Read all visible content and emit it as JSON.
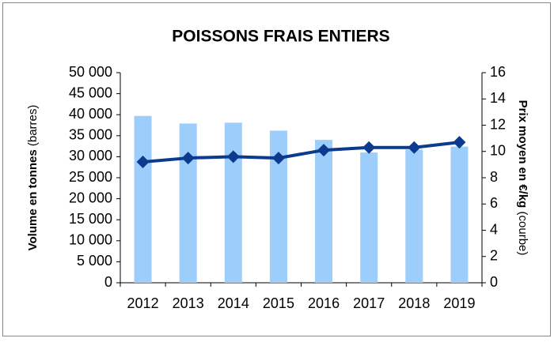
{
  "chart_data": {
    "type": "bar_line",
    "title": "POISSONS FRAIS ENTIERS",
    "y_label": "Volume en tonnes",
    "y_label_note": "(barres)",
    "y2_label": "Prix moyen en €/kg",
    "y2_label_note": "(courbe)",
    "categories": [
      "2012",
      "2013",
      "2014",
      "2015",
      "2016",
      "2017",
      "2018",
      "2019"
    ],
    "series": [
      {
        "type": "bar",
        "color": "#9dcdfa",
        "values": [
          39700,
          37900,
          38100,
          36200,
          34000,
          31000,
          31700,
          32400
        ]
      },
      {
        "type": "line",
        "axis": "y2",
        "color": "#0b3a8f",
        "values": [
          9.2,
          9.5,
          9.6,
          9.5,
          10.1,
          10.3,
          10.3,
          10.7
        ]
      }
    ],
    "ylim": [
      0,
      50000
    ],
    "yticks": [
      0,
      {
        "value": 5000,
        "label": "5 000"
      },
      {
        "value": 10000,
        "label": "10 000"
      },
      {
        "value": 15000,
        "label": "15 000"
      },
      {
        "value": 20000,
        "label": "20 000"
      },
      {
        "value": 25000,
        "label": "25 000"
      },
      {
        "value": 30000,
        "label": "30 000"
      },
      {
        "value": 35000,
        "label": "35 000"
      },
      {
        "value": 40000,
        "label": "40 000"
      },
      {
        "value": 45000,
        "label": "45 000"
      },
      {
        "value": 50000,
        "label": "50 000"
      }
    ],
    "y2lim": [
      0,
      16
    ],
    "y2ticks": [
      0,
      2,
      4,
      6,
      8,
      10,
      12,
      14,
      16
    ],
    "grid": false
  }
}
